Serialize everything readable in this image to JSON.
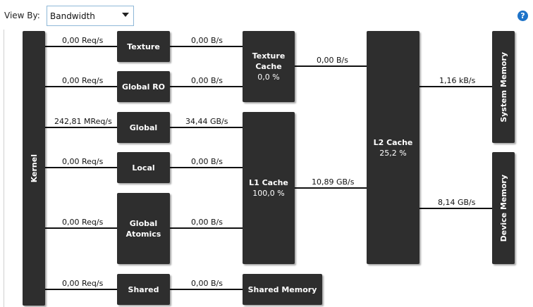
{
  "toolbar": {
    "view_by_label": "View By:",
    "view_by_value": "Bandwidth",
    "help_symbol": "?"
  },
  "blocks": {
    "kernel": "Kernel",
    "texture": "Texture",
    "global_ro": "Global RO",
    "global": "Global",
    "local": "Local",
    "global_atomics": [
      "Global",
      "Atomics"
    ],
    "shared": "Shared",
    "texture_cache": {
      "title": [
        "Texture",
        "Cache"
      ],
      "value": "0,0 %"
    },
    "l1_cache": {
      "title": "L1 Cache",
      "value": "100,0 %"
    },
    "shared_memory": "Shared Memory",
    "l2_cache": {
      "title": "L2 Cache",
      "value": "25,2 %"
    },
    "system_memory": "System Memory",
    "device_memory": "Device Memory"
  },
  "flows": {
    "kernel_texture": "0,00 Req/s",
    "kernel_global_ro": "0,00 Req/s",
    "kernel_global": "242,81 MReq/s",
    "kernel_local": "0,00 Req/s",
    "kernel_global_atomics": "0,00 Req/s",
    "kernel_shared": "0,00 Req/s",
    "texture_texcache": "0,00 B/s",
    "global_ro_texcache": "0,00 B/s",
    "global_l1": "34,44 GB/s",
    "local_l1": "0,00 B/s",
    "global_atomics_l1": "0,00 B/s",
    "shared_sharedmem": "0,00 B/s",
    "texcache_l2": "0,00 B/s",
    "l1_l2": "10,89 GB/s",
    "l2_system": "1,16 kB/s",
    "l2_device": "8,14 GB/s"
  },
  "colors": {
    "block_fill": "#2e2e2e",
    "line": "#111111",
    "help_icon": "#1e73c8",
    "dropdown_border": "#8fb8d8"
  }
}
